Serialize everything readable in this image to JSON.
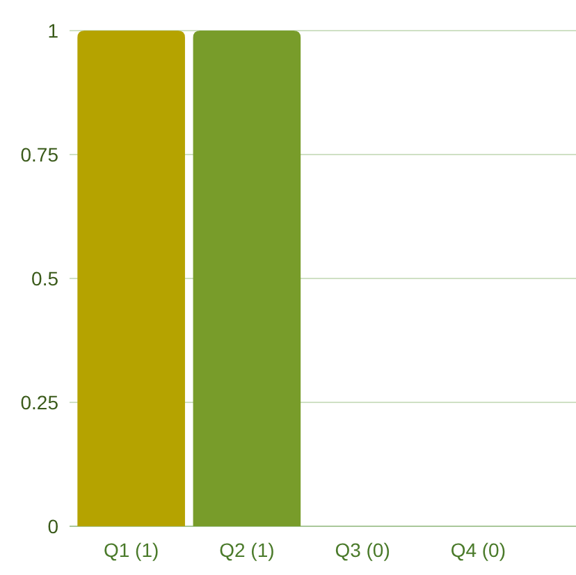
{
  "chart_data": {
    "type": "bar",
    "categories": [
      "Q1 (1)",
      "Q2 (1)",
      "Q3 (0)",
      "Q4 (0)"
    ],
    "values": [
      1,
      1,
      0,
      0
    ],
    "colors": [
      "#b5a300",
      "#789c2a",
      "#b5a300",
      "#789c2a"
    ],
    "ylim": [
      0,
      1
    ],
    "yticks": [
      0,
      0.25,
      0.5,
      0.75,
      1
    ],
    "grid": "y"
  }
}
